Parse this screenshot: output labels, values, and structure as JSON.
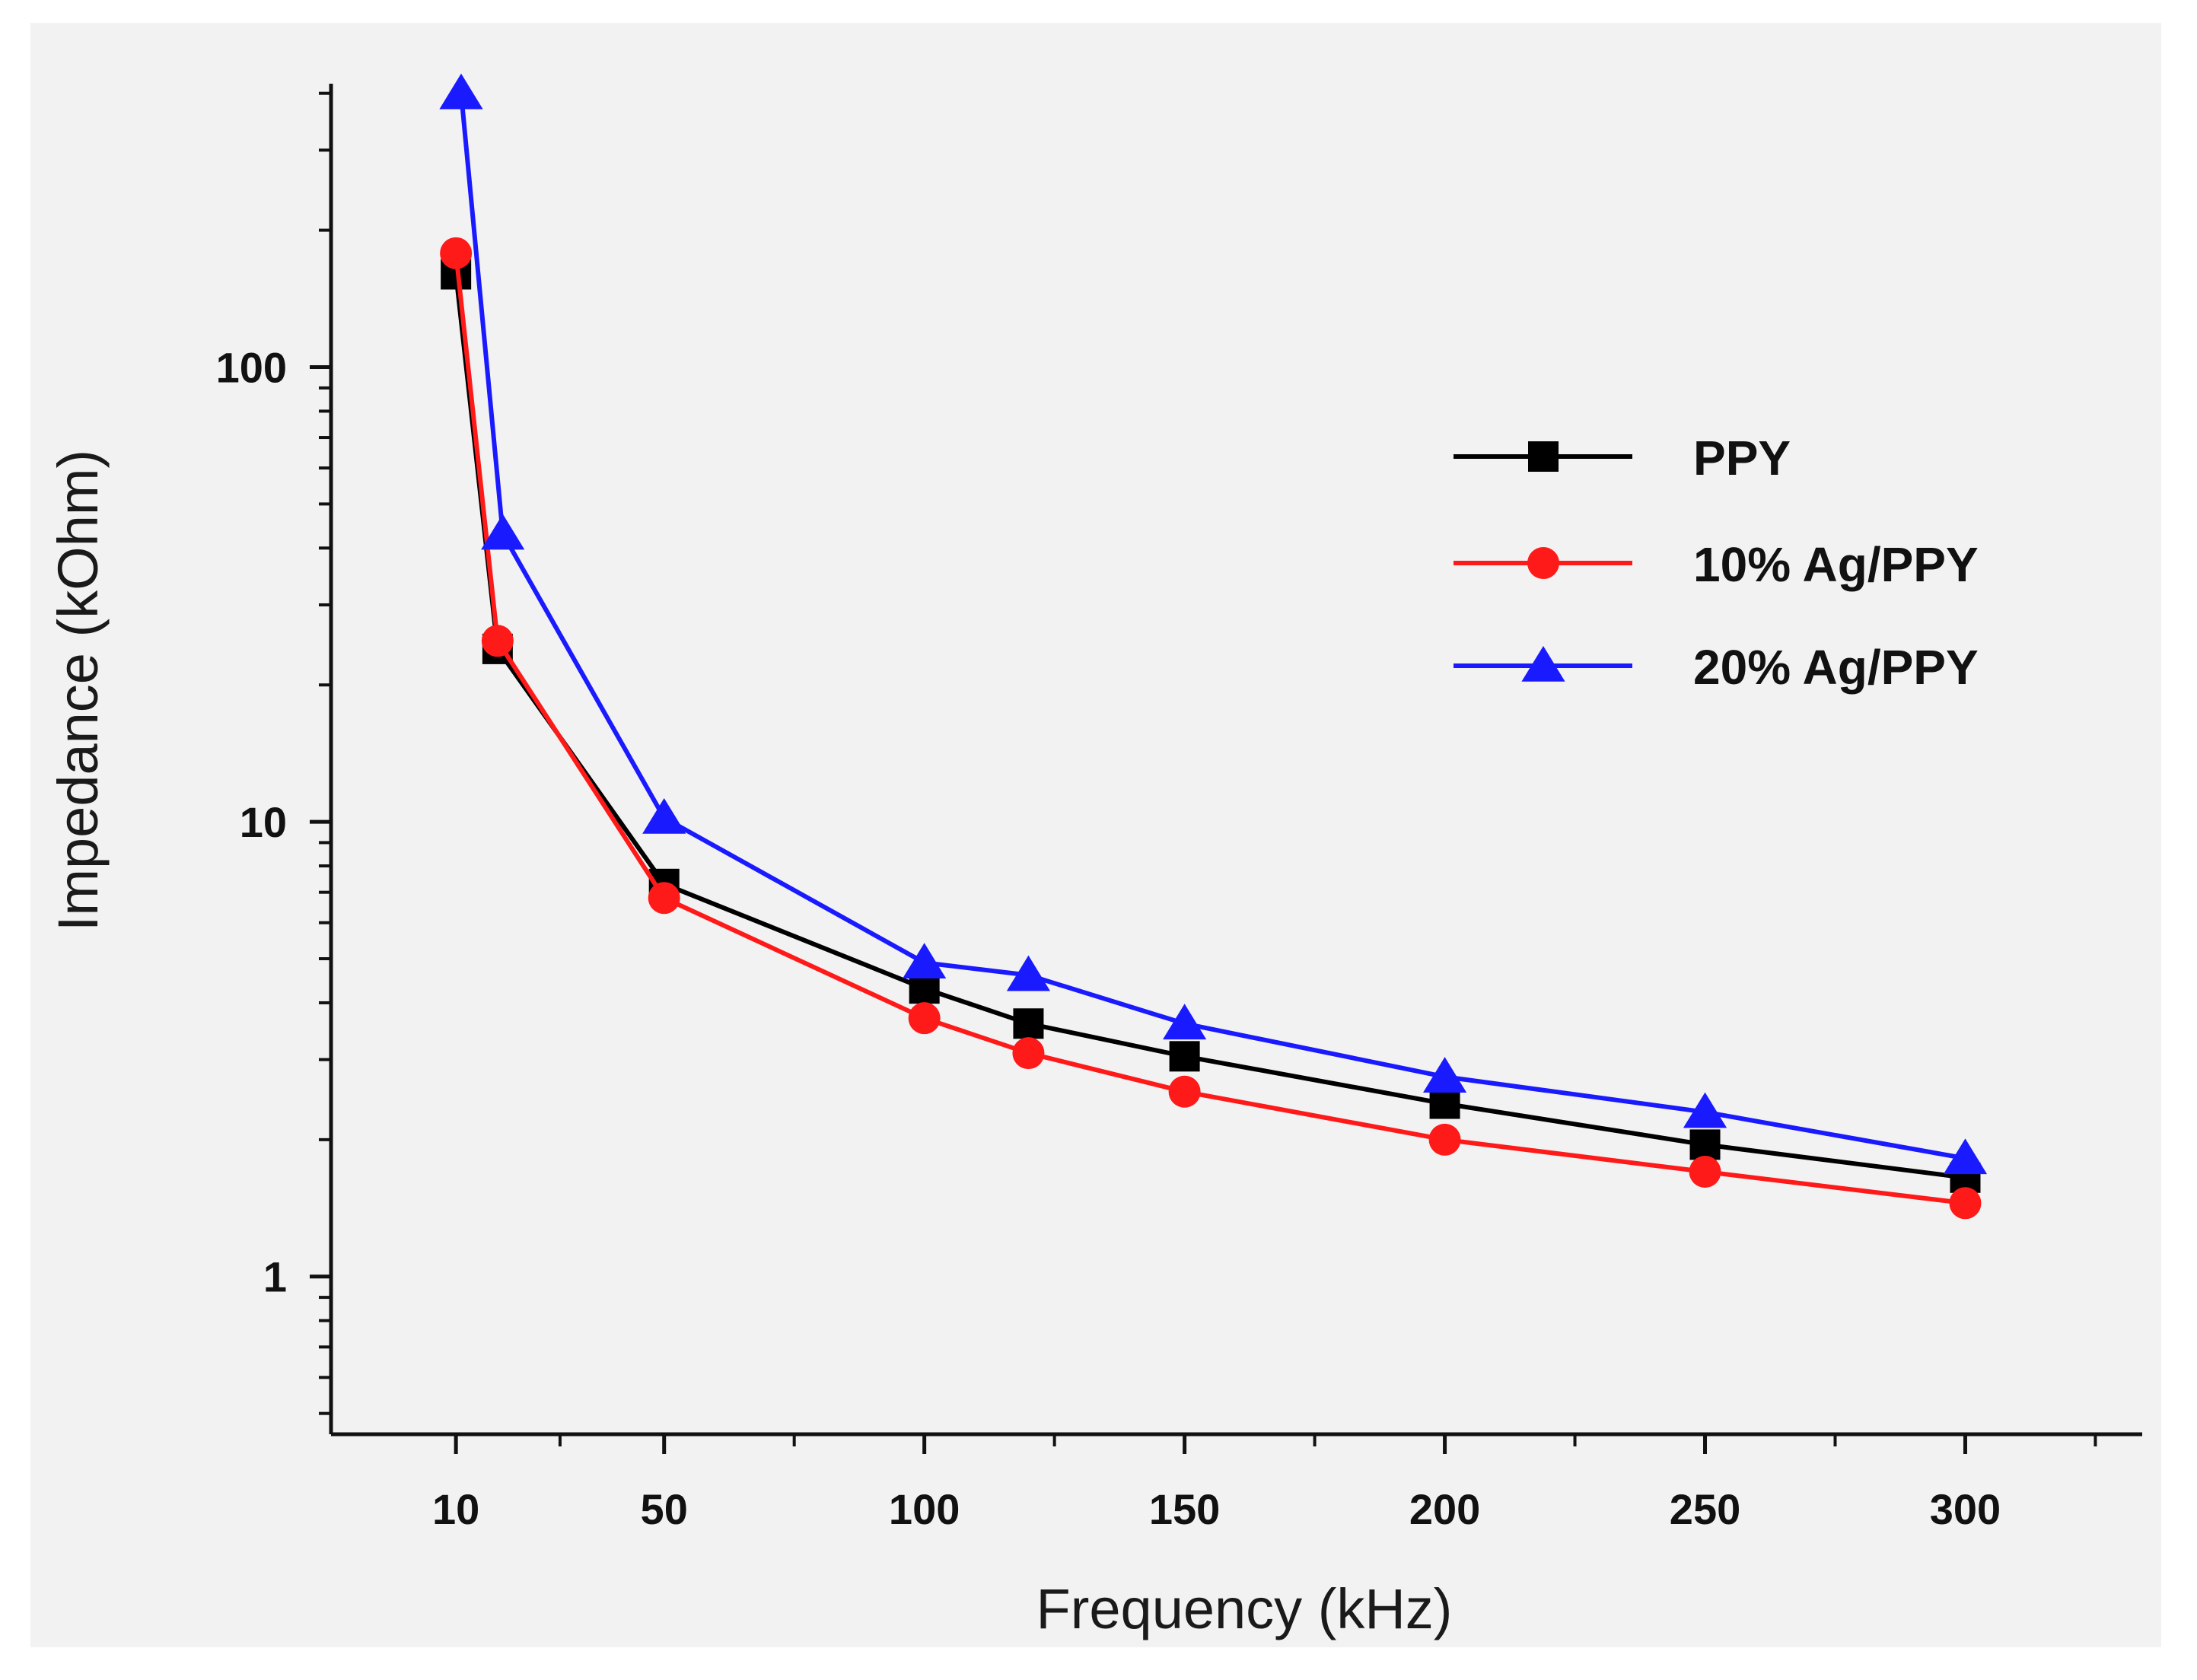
{
  "chart_data": {
    "type": "line",
    "xlabel": "Frequency (kHz)",
    "ylabel": "Impedance (kOhm)",
    "y_scale": "log",
    "xlim": [
      -14,
      334
    ],
    "ylim": [
      0.45,
      420
    ],
    "x_ticks": [
      10,
      50,
      100,
      150,
      200,
      250,
      300
    ],
    "y_ticks": [
      1,
      10,
      100
    ],
    "legend_position": "right",
    "background": "#f2f2f2",
    "series": [
      {
        "name": "PPY",
        "color": "#000000",
        "marker": "square",
        "x": [
          10,
          18,
          50,
          100,
          120,
          150,
          200,
          250,
          300
        ],
        "y": [
          160,
          24,
          7.3,
          4.3,
          3.6,
          3.05,
          2.4,
          1.95,
          1.65
        ]
      },
      {
        "name": "10% Ag/PPY",
        "color": "#ff1a1a",
        "marker": "circle",
        "x": [
          10,
          18,
          50,
          100,
          120,
          150,
          200,
          250,
          300
        ],
        "y": [
          178,
          25,
          6.8,
          3.7,
          3.1,
          2.55,
          2.0,
          1.7,
          1.45
        ]
      },
      {
        "name": "20% Ag/PPY",
        "color": "#1a1aff",
        "marker": "triangle",
        "x": [
          11,
          19,
          50,
          100,
          120,
          150,
          200,
          250,
          300
        ],
        "y": [
          400,
          43,
          10.2,
          4.9,
          4.6,
          3.6,
          2.75,
          2.3,
          1.82
        ]
      }
    ]
  }
}
